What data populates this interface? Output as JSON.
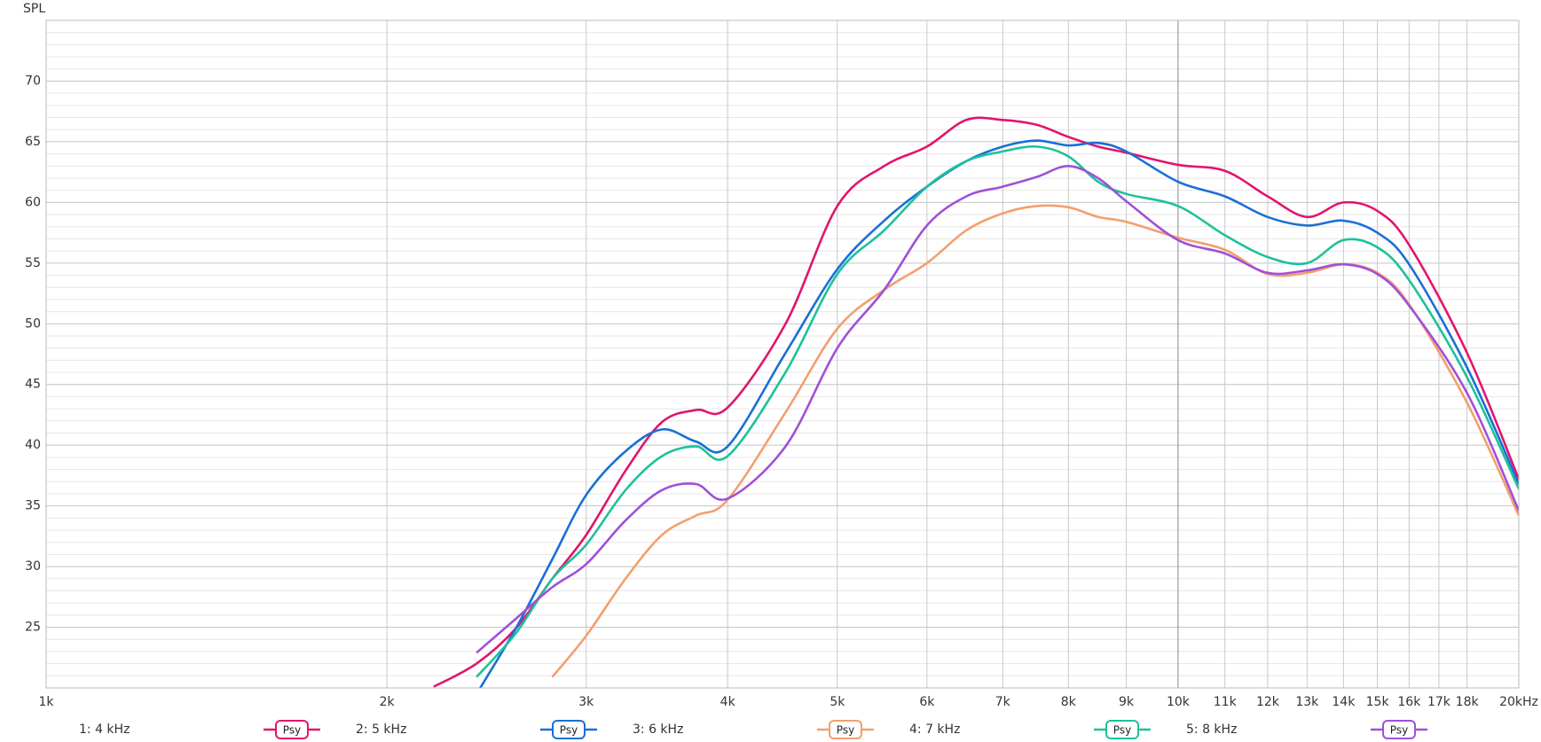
{
  "chart_data": {
    "type": "line",
    "y_label": "SPL",
    "log_x": true,
    "grid": true,
    "legend_badge": "Psy",
    "x": [
      2200,
      2400,
      2600,
      2800,
      3000,
      3250,
      3500,
      3750,
      4000,
      4500,
      5000,
      5500,
      6000,
      6500,
      7000,
      7500,
      8000,
      8500,
      9000,
      10000,
      11000,
      12000,
      13000,
      14000,
      15000,
      16000,
      18000,
      20000
    ],
    "series": [
      {
        "name": "1: 4 kHz",
        "color": "#e2146c",
        "values": [
          20.1,
          22,
          24.9,
          29,
          32.6,
          37.9,
          41.9,
          42.9,
          43.1,
          50,
          59.7,
          63,
          64.6,
          66.8,
          66.8,
          66.4,
          65.4,
          64.6,
          64.1,
          63.1,
          62.6,
          60.5,
          58.8,
          60,
          59.3,
          56.5,
          47.6,
          37.2
        ]
      },
      {
        "name": "2: 5 kHz",
        "color": "#1a6fd6",
        "values": [
          null,
          19.5,
          24.9,
          30.6,
          35.9,
          39.5,
          41.3,
          40.3,
          39.9,
          47.6,
          54.5,
          58.5,
          61.3,
          63.4,
          64.6,
          65.1,
          64.7,
          64.9,
          64.2,
          61.7,
          60.5,
          58.8,
          58.1,
          58.5,
          57.5,
          54.9,
          46.4,
          36.8
        ]
      },
      {
        "name": "3: 6 kHz",
        "color": "#f2a06e",
        "values": [
          null,
          null,
          null,
          20.9,
          24.3,
          29,
          32.6,
          34.2,
          35.5,
          42.7,
          49.6,
          52.8,
          55,
          57.7,
          59.1,
          59.7,
          59.6,
          58.8,
          58.4,
          57.1,
          56.1,
          54.1,
          54.2,
          54.9,
          54.2,
          51.6,
          43.5,
          34.2
        ]
      },
      {
        "name": "4: 7 kHz",
        "color": "#1dc29a",
        "values": [
          null,
          20.9,
          24.5,
          29,
          31.8,
          36.3,
          39.1,
          39.9,
          39.1,
          46,
          54.1,
          57.7,
          61.3,
          63.4,
          64.2,
          64.6,
          63.8,
          61.7,
          60.7,
          59.7,
          57.3,
          55.5,
          55,
          56.9,
          56.3,
          53.6,
          45.6,
          36.4
        ]
      },
      {
        "name": "5: 8 kHz",
        "color": "#a050d8",
        "values": [
          null,
          22.9,
          25.7,
          28.3,
          30.2,
          33.8,
          36.3,
          36.8,
          35.6,
          39.9,
          48,
          52.8,
          58.1,
          60.5,
          61.3,
          62.1,
          63,
          62,
          60.1,
          56.9,
          55.8,
          54.2,
          54.4,
          54.9,
          54.1,
          51.5,
          44.3,
          34.6
        ]
      }
    ],
    "xlim": [
      1000,
      20000
    ],
    "xticks": [
      {
        "value": 1000,
        "label": "1k"
      },
      {
        "value": 2000,
        "label": "2k"
      },
      {
        "value": 3000,
        "label": "3k"
      },
      {
        "value": 4000,
        "label": "4k"
      },
      {
        "value": 5000,
        "label": "5k"
      },
      {
        "value": 6000,
        "label": "6k"
      },
      {
        "value": 7000,
        "label": "7k"
      },
      {
        "value": 8000,
        "label": "8k"
      },
      {
        "value": 9000,
        "label": "9k"
      },
      {
        "value": 10000,
        "label": "10k"
      },
      {
        "value": 11000,
        "label": "11k"
      },
      {
        "value": 12000,
        "label": "12k"
      },
      {
        "value": 13000,
        "label": "13k"
      },
      {
        "value": 14000,
        "label": "14k"
      },
      {
        "value": 15000,
        "label": "15k"
      },
      {
        "value": 16000,
        "label": "16k"
      },
      {
        "value": 17000,
        "label": "17k"
      },
      {
        "value": 18000,
        "label": "18k"
      },
      {
        "value": 20000,
        "label": "20kHz"
      }
    ],
    "ylim": [
      20,
      75
    ],
    "yticks": [
      25,
      30,
      35,
      40,
      45,
      50,
      55,
      60,
      65,
      70
    ],
    "yminorticks": [
      21,
      22,
      23,
      24,
      26,
      27,
      28,
      29,
      31,
      32,
      33,
      34,
      36,
      37,
      38,
      39,
      41,
      42,
      43,
      44,
      46,
      47,
      48,
      49,
      51,
      52,
      53,
      54,
      56,
      57,
      58,
      59,
      61,
      62,
      63,
      64,
      66,
      67,
      68,
      69,
      71,
      72,
      73,
      74
    ]
  }
}
